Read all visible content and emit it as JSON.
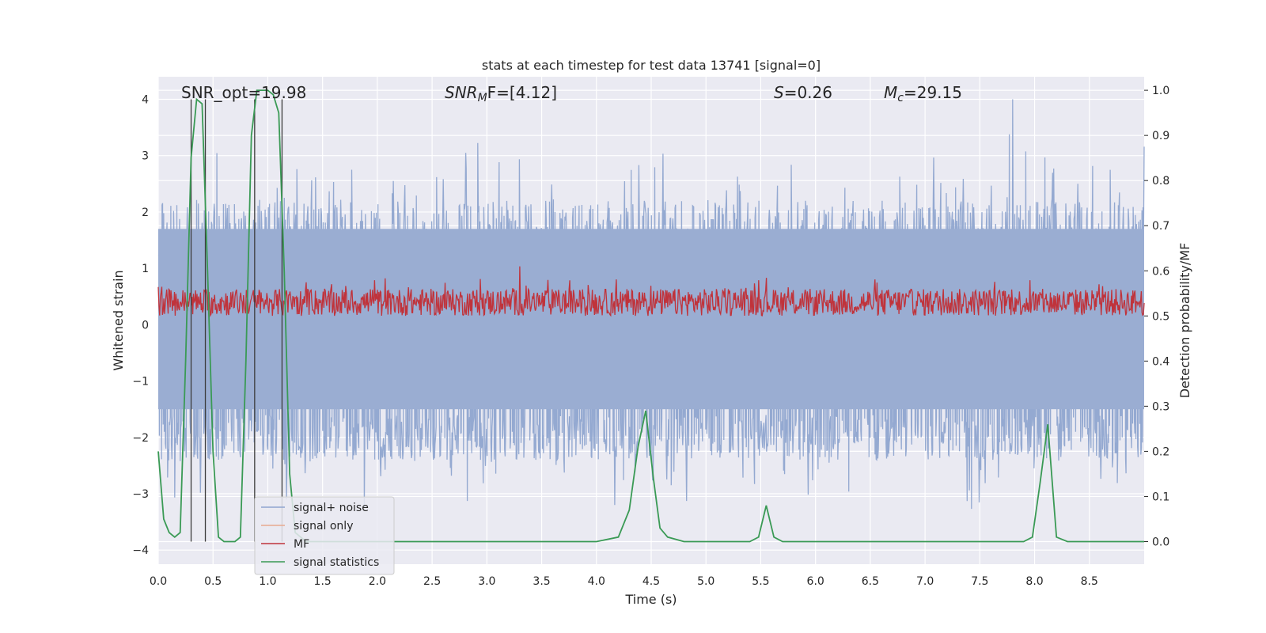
{
  "chart_data": {
    "type": "line",
    "title": "stats at each timestep for test data 13741 [signal=0]",
    "xlabel": "Time (s)",
    "ylabel": "Whitened strain",
    "ylabel_right": "Detection probability/MF",
    "xlim": [
      0.0,
      9.0
    ],
    "ylim": [
      -4.25,
      4.4
    ],
    "ylim_right": [
      -0.05,
      1.03
    ],
    "xticks": [
      "0.0",
      "0.5",
      "1.0",
      "1.5",
      "2.0",
      "2.5",
      "3.0",
      "3.5",
      "4.0",
      "4.5",
      "5.0",
      "5.5",
      "6.0",
      "6.5",
      "7.0",
      "7.5",
      "8.0",
      "8.5"
    ],
    "yticks_left": [
      "4",
      "3",
      "2",
      "1",
      "0",
      "−1",
      "−2",
      "−3",
      "−4"
    ],
    "yticks_right": [
      "1.0",
      "0.9",
      "0.8",
      "0.7",
      "0.6",
      "0.5",
      "0.4",
      "0.3",
      "0.2",
      "0.1",
      "0.0"
    ],
    "grid": true,
    "annotations": [
      {
        "text": "SNR_opt=19.98"
      },
      {
        "text": "SNR",
        "sub": "M",
        "tail": "F=[4.12]",
        "italic": true
      },
      {
        "text": "S",
        "tail": "=0.26",
        "italic": true
      },
      {
        "text": "M",
        "sub": "c",
        "tail": "=29.15",
        "italic": true
      }
    ],
    "legend": {
      "location": "lower-left",
      "entries": [
        {
          "label": "signal+ noise",
          "color": "#8fa5cf"
        },
        {
          "label": "signal only",
          "color": "#e8a98f"
        },
        {
          "label": "MF",
          "color": "#c0333b"
        },
        {
          "label": "signal statistics",
          "color": "#3a9a55"
        }
      ]
    },
    "vertical_markers_s": [
      0.3,
      0.43,
      0.88,
      1.13
    ],
    "series": [
      {
        "name": "signal+ noise",
        "axis": "left",
        "color": "#8fa5cf",
        "description": "dense whitened strain, mostly within -2.2 to 2.8, peaks near 4.0 at t=7.8"
      },
      {
        "name": "signal only",
        "axis": "left",
        "color": "#e8a98f",
        "values": "none visible"
      },
      {
        "name": "MF",
        "axis": "right",
        "color": "#c0333b",
        "description": "noisy matched-filter output around 0.52-0.58, peak 0.61 at t=3.3"
      },
      {
        "name": "signal statistics",
        "axis": "right",
        "color": "#3a9a55",
        "x": [
          0.0,
          0.05,
          0.1,
          0.15,
          0.2,
          0.25,
          0.3,
          0.35,
          0.4,
          0.45,
          0.5,
          0.55,
          0.6,
          0.65,
          0.7,
          0.75,
          0.8,
          0.85,
          0.9,
          0.95,
          1.0,
          1.05,
          1.1,
          1.15,
          1.2,
          1.25,
          1.3,
          1.35,
          1.5,
          2.0,
          2.5,
          3.0,
          3.5,
          4.0,
          4.2,
          4.3,
          4.38,
          4.45,
          4.52,
          4.58,
          4.65,
          4.8,
          5.0,
          5.2,
          5.4,
          5.48,
          5.55,
          5.62,
          5.7,
          5.8,
          6.0,
          6.5,
          7.0,
          7.5,
          7.9,
          7.98,
          8.05,
          8.12,
          8.2,
          8.3,
          8.5,
          8.8,
          9.0
        ],
        "values": [
          0.2,
          0.05,
          0.02,
          0.01,
          0.02,
          0.4,
          0.85,
          0.98,
          0.97,
          0.6,
          0.2,
          0.01,
          0.0,
          0.0,
          0.0,
          0.01,
          0.4,
          0.9,
          1.0,
          1.0,
          1.0,
          0.99,
          0.95,
          0.6,
          0.15,
          0.02,
          0.01,
          0.0,
          0.0,
          0.0,
          0.0,
          0.0,
          0.0,
          0.0,
          0.01,
          0.07,
          0.21,
          0.29,
          0.14,
          0.03,
          0.01,
          0.0,
          0.0,
          0.0,
          0.0,
          0.01,
          0.08,
          0.01,
          0.0,
          0.0,
          0.0,
          0.0,
          0.0,
          0.0,
          0.0,
          0.01,
          0.13,
          0.26,
          0.01,
          0.0,
          0.0,
          0.0,
          0.0
        ]
      }
    ]
  }
}
